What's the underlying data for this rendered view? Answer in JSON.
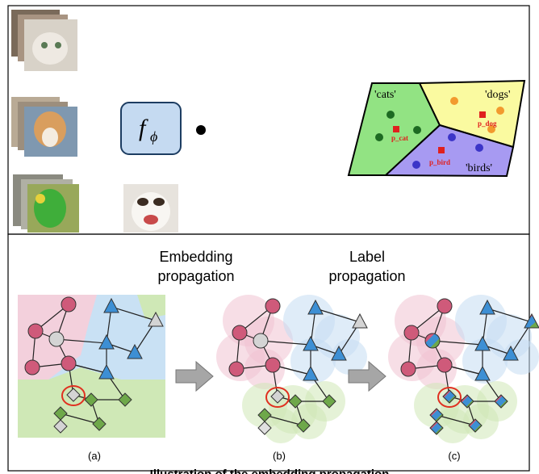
{
  "top_panel": {
    "function_label": {
      "symbol": "f",
      "subscript": "ϕ"
    },
    "regions": [
      "'cats'",
      "'dogs'",
      "'birds'"
    ],
    "prototypes": [
      "p_cat",
      "p_dog",
      "p_bird"
    ]
  },
  "bottom_panel": {
    "headings": [
      "Embedding propagation",
      "Label propagation"
    ],
    "subfigure_labels": [
      "(a)",
      "(b)",
      "(c)"
    ]
  },
  "caption": "Illustration of the embedding propagation"
}
